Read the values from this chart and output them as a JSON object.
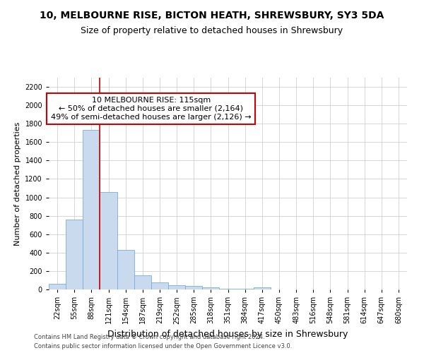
{
  "title": "10, MELBOURNE RISE, BICTON HEATH, SHREWSBURY, SY3 5DA",
  "subtitle": "Size of property relative to detached houses in Shrewsbury",
  "xlabel": "Distribution of detached houses by size in Shrewsbury",
  "ylabel": "Number of detached properties",
  "footer_line1": "Contains HM Land Registry data © Crown copyright and database right 2024.",
  "footer_line2": "Contains public sector information licensed under the Open Government Licence v3.0.",
  "bar_color": "#c9d9ee",
  "bar_edge_color": "#7aadd4",
  "annotation_text": "10 MELBOURNE RISE: 115sqm\n← 50% of detached houses are smaller (2,164)\n49% of semi-detached houses are larger (2,126) →",
  "annotation_box_color": "#ffffff",
  "annotation_box_edge_color": "#cc0000",
  "vline_color": "#cc0000",
  "vline_x_idx": 3,
  "categories": [
    "22sqm",
    "55sqm",
    "88sqm",
    "121sqm",
    "154sqm",
    "187sqm",
    "219sqm",
    "252sqm",
    "285sqm",
    "318sqm",
    "351sqm",
    "384sqm",
    "417sqm",
    "450sqm",
    "483sqm",
    "516sqm",
    "548sqm",
    "581sqm",
    "614sqm",
    "647sqm",
    "680sqm"
  ],
  "bin_edges": [
    5.5,
    38.5,
    71.5,
    104.5,
    137.5,
    170.5,
    203.5,
    236.5,
    269.5,
    302.5,
    335.5,
    368.5,
    401.5,
    434.5,
    467.5,
    500.5,
    533.5,
    566.5,
    599.5,
    632.5,
    665.5,
    698.5
  ],
  "bar_heights": [
    60,
    760,
    1730,
    1060,
    430,
    150,
    80,
    45,
    35,
    20,
    5,
    5,
    20,
    0,
    0,
    0,
    0,
    0,
    0,
    0,
    0
  ],
  "ylim": [
    0,
    2300
  ],
  "yticks": [
    0,
    200,
    400,
    600,
    800,
    1000,
    1200,
    1400,
    1600,
    1800,
    2000,
    2200
  ],
  "grid_color": "#d0d0d0",
  "background_color": "#ffffff",
  "title_fontsize": 10,
  "subtitle_fontsize": 9,
  "ylabel_fontsize": 8,
  "xlabel_fontsize": 9,
  "tick_fontsize": 7,
  "footer_fontsize": 6,
  "annot_fontsize": 8
}
